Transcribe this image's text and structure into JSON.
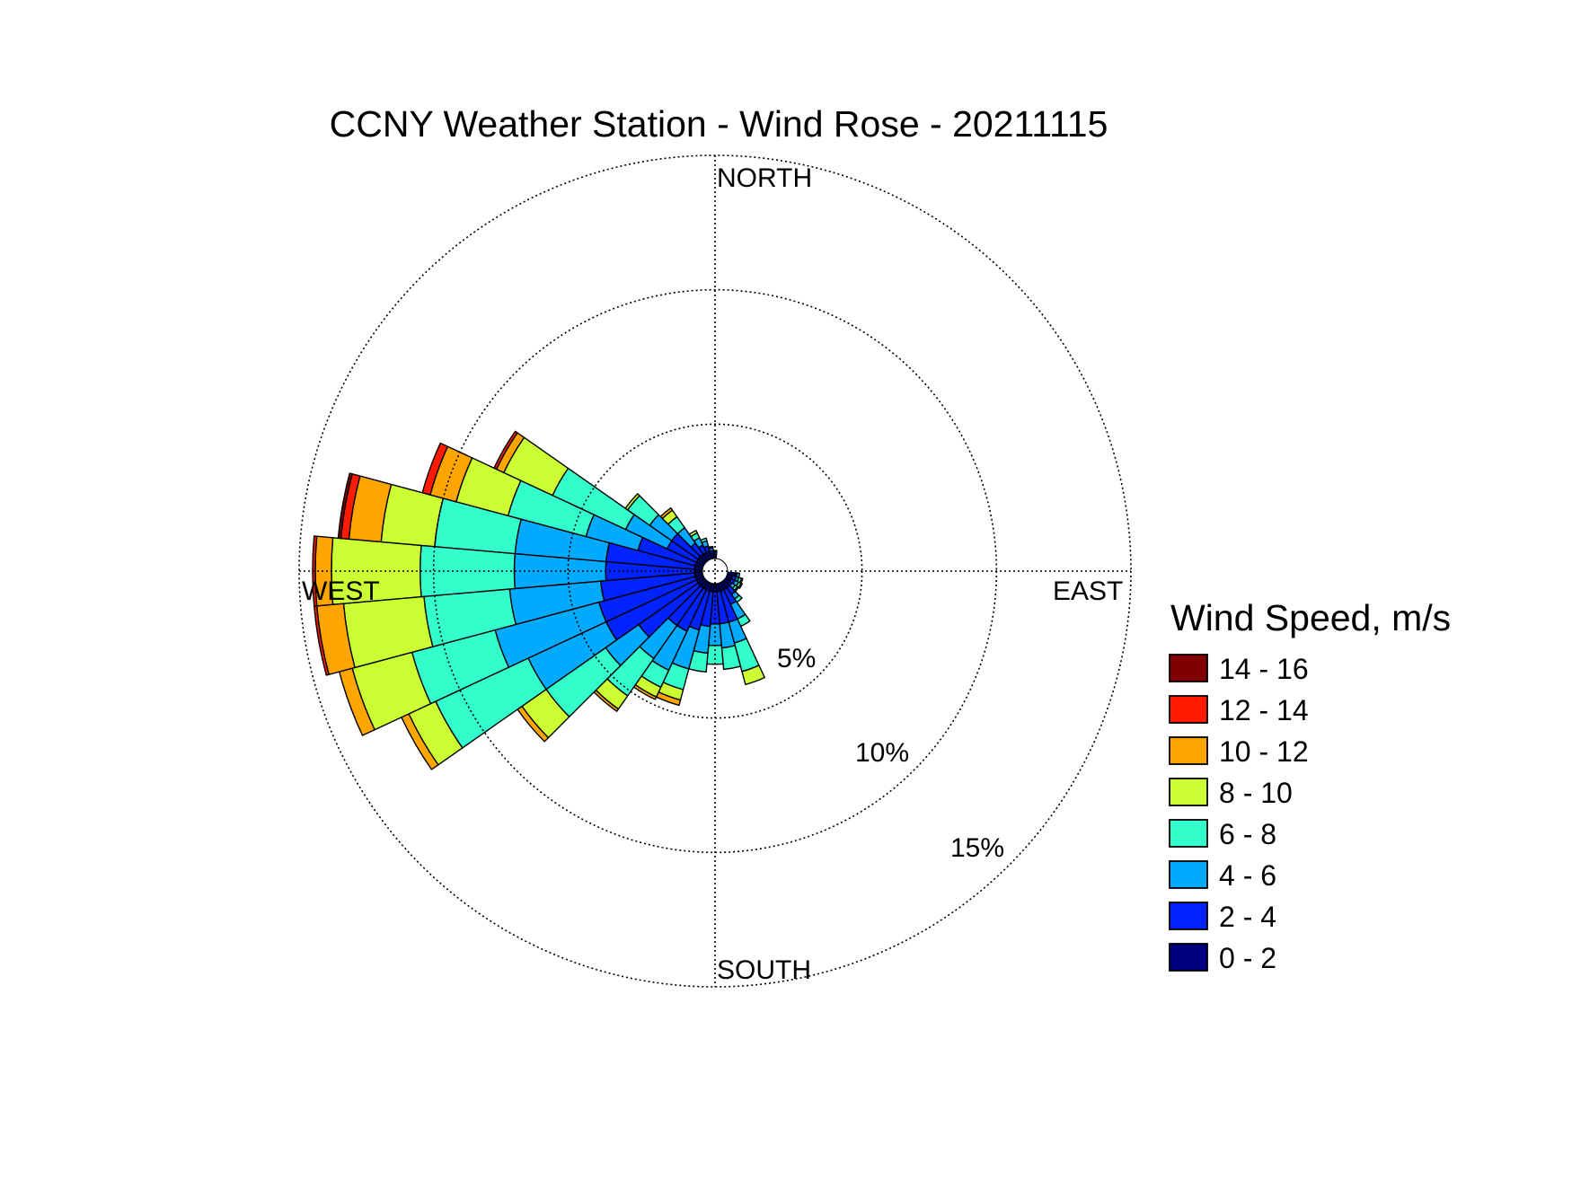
{
  "chart_data": {
    "type": "wind-rose",
    "title": "CCNY Weather Station - Wind Rose - 20211115",
    "directions": {
      "north": "NORTH",
      "east": "EAST",
      "south": "SOUTH",
      "west": "WEST"
    },
    "rings": [
      {
        "value": 5,
        "label": "5%"
      },
      {
        "value": 10,
        "label": "10%"
      },
      {
        "value": 15,
        "label": "15%"
      }
    ],
    "rmax": 15,
    "sector_width_deg": 10,
    "legend": {
      "title": "Wind Speed, m/s",
      "bins": [
        {
          "label": "14 - 16",
          "color": "#800000"
        },
        {
          "label": "12 - 14",
          "color": "#ff1a00"
        },
        {
          "label": "10 - 12",
          "color": "#ffa500"
        },
        {
          "label": "8 - 10",
          "color": "#ccff33"
        },
        {
          "label": "6 - 8",
          "color": "#33ffcc"
        },
        {
          "label": "4 - 6",
          "color": "#00aaff"
        },
        {
          "label": "2 - 4",
          "color": "#0022ff"
        },
        {
          "label": "0 - 2",
          "color": "#000080"
        }
      ]
    },
    "bin_order_inner_to_outer": [
      "0 - 2",
      "2 - 4",
      "4 - 6",
      "6 - 8",
      "8 - 10",
      "10 - 12",
      "12 - 14",
      "14 - 16"
    ],
    "sectors": [
      {
        "dir": 0,
        "cum": [
          0.15,
          0.25,
          0.3,
          0.3,
          0.3,
          0.3,
          0.3,
          0.3
        ]
      },
      {
        "dir": 100,
        "cum": [
          0.3,
          0.35,
          0.45,
          0.45,
          0.45,
          0.45,
          0.45,
          0.45
        ]
      },
      {
        "dir": 110,
        "cum": [
          0.2,
          0.35,
          0.45,
          0.55,
          0.6,
          0.6,
          0.6,
          0.6
        ]
      },
      {
        "dir": 120,
        "cum": [
          0.2,
          0.35,
          0.5,
          0.6,
          0.65,
          0.65,
          0.65,
          0.65
        ]
      },
      {
        "dir": 130,
        "cum": [
          0.2,
          0.3,
          0.45,
          0.55,
          0.6,
          0.6,
          0.6,
          0.6
        ]
      },
      {
        "dir": 140,
        "cum": [
          0.3,
          0.6,
          0.8,
          0.95,
          0.95,
          0.95,
          0.95,
          0.95
        ]
      },
      {
        "dir": 150,
        "cum": [
          0.3,
          0.9,
          1.5,
          1.8,
          1.8,
          1.8,
          1.8,
          1.8
        ]
      },
      {
        "dir": 160,
        "cum": [
          0.3,
          1.5,
          2.3,
          3.4,
          3.9,
          3.9,
          3.9,
          3.9
        ]
      },
      {
        "dir": 170,
        "cum": [
          0.3,
          1.5,
          2.4,
          3.2,
          3.2,
          3.2,
          3.2,
          3.2
        ]
      },
      {
        "dir": 180,
        "cum": [
          0.3,
          1.5,
          2.3,
          3.0,
          3.0,
          3.0,
          3.0,
          3.0
        ]
      },
      {
        "dir": 190,
        "cum": [
          0.3,
          1.6,
          2.6,
          3.3,
          3.3,
          3.3,
          3.3,
          3.3
        ]
      },
      {
        "dir": 200,
        "cum": [
          0.3,
          1.8,
          3.3,
          4.1,
          4.5,
          4.7,
          4.7,
          4.7
        ]
      },
      {
        "dir": 210,
        "cum": [
          0.3,
          2.0,
          3.6,
          4.3,
          4.7,
          4.8,
          4.8,
          4.8
        ]
      },
      {
        "dir": 220,
        "cum": [
          0.3,
          2.0,
          3.5,
          5.2,
          5.8,
          5.9,
          5.9,
          5.9
        ]
      },
      {
        "dir": 230,
        "cum": [
          0.3,
          3.0,
          4.5,
          7.2,
          8.3,
          8.5,
          8.5,
          8.5
        ]
      },
      {
        "dir": 240,
        "cum": [
          0.3,
          4.0,
          7.2,
          11.0,
          12.1,
          12.4,
          12.4,
          12.4
        ]
      },
      {
        "dir": 250,
        "cum": [
          0.3,
          4.0,
          8.0,
          11.2,
          13.5,
          14.0,
          14.0,
          14.0
        ]
      },
      {
        "dir": 260,
        "cum": [
          0.3,
          3.8,
          7.2,
          10.4,
          13.4,
          14.4,
          14.5,
          14.5
        ]
      },
      {
        "dir": 270,
        "cum": [
          0.3,
          3.6,
          7.0,
          10.5,
          13.8,
          14.4,
          14.5,
          14.5
        ]
      },
      {
        "dir": 280,
        "cum": [
          0.3,
          3.6,
          7.0,
          10.0,
          12.0,
          13.2,
          13.5,
          13.6
        ]
      },
      {
        "dir": 290,
        "cum": [
          0.3,
          2.5,
          4.5,
          7.5,
          9.5,
          10.5,
          10.8,
          10.8
        ]
      },
      {
        "dir": 300,
        "cum": [
          0.3,
          1.5,
          3.2,
          6.2,
          8.2,
          8.5,
          8.6,
          8.6
        ]
      },
      {
        "dir": 310,
        "cum": [
          0.3,
          1.5,
          2.5,
          3.5,
          3.6,
          3.6,
          3.6,
          3.6
        ]
      },
      {
        "dir": 320,
        "cum": [
          0.3,
          0.8,
          1.5,
          2.0,
          2.3,
          2.4,
          2.4,
          2.4
        ]
      },
      {
        "dir": 330,
        "cum": [
          0.3,
          0.6,
          0.9,
          1.1,
          1.2,
          1.2,
          1.2,
          1.2
        ]
      },
      {
        "dir": 340,
        "cum": [
          0.3,
          0.5,
          0.7,
          0.8,
          0.8,
          0.8,
          0.8,
          0.8
        ]
      },
      {
        "dir": 350,
        "cum": [
          0.2,
          0.3,
          0.4,
          0.45,
          0.45,
          0.45,
          0.45,
          0.45
        ]
      }
    ]
  }
}
